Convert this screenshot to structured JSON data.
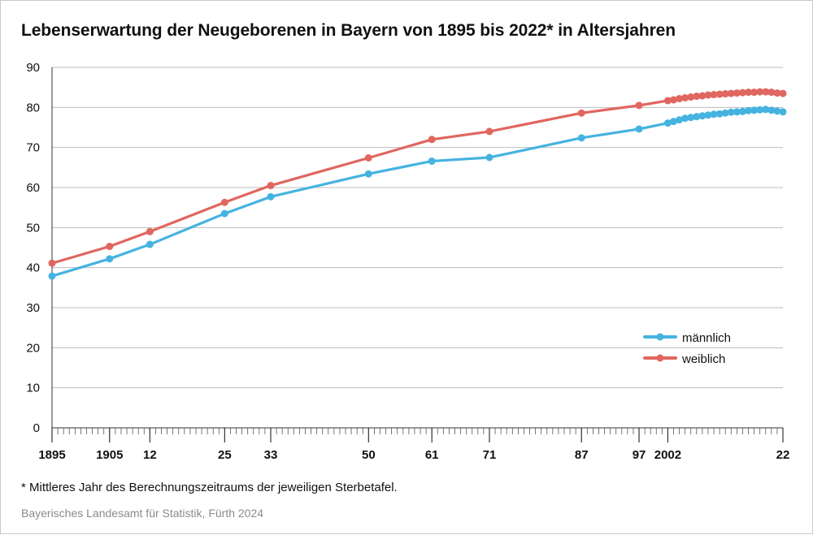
{
  "title": "Lebenserwartung der Neugeborenen in Bayern von 1895 bis 2022* in Altersjahren",
  "footnote": "* Mittleres Jahr des Berechnungszeitraums der jeweiligen Sterbetafel.",
  "source": "Bayerisches Landesamt für Statistik, Fürth 2024",
  "chart_data": {
    "type": "line",
    "title": "Lebenserwartung der Neugeborenen in Bayern von 1895 bis 2022* in Altersjahren",
    "xlabel": "",
    "ylabel": "",
    "xlim": [
      1895,
      2022
    ],
    "ylim": [
      0,
      90
    ],
    "y_ticks": [
      0,
      10,
      20,
      30,
      40,
      50,
      60,
      70,
      80,
      90
    ],
    "x_tick_labels": [
      {
        "year": 1895,
        "label": "1895"
      },
      {
        "year": 1905,
        "label": "1905"
      },
      {
        "year": 1912,
        "label": "12"
      },
      {
        "year": 1925,
        "label": "25"
      },
      {
        "year": 1933,
        "label": "33"
      },
      {
        "year": 1950,
        "label": "50"
      },
      {
        "year": 1961,
        "label": "61"
      },
      {
        "year": 1971,
        "label": "71"
      },
      {
        "year": 1987,
        "label": "87"
      },
      {
        "year": 1997,
        "label": "97"
      },
      {
        "year": 2002,
        "label": "2002"
      },
      {
        "year": 2022,
        "label": "22"
      }
    ],
    "grid": "horizontal",
    "legend_position": "right",
    "series": [
      {
        "name": "männlich",
        "color": "#45b3e0",
        "x": [
          1895,
          1905,
          1912,
          1925,
          1933,
          1950,
          1961,
          1971,
          1987,
          1997,
          2002,
          2003,
          2004,
          2005,
          2006,
          2007,
          2008,
          2009,
          2010,
          2011,
          2012,
          2013,
          2014,
          2015,
          2016,
          2017,
          2018,
          2019,
          2020,
          2021,
          2022
        ],
        "values": [
          37.9,
          42.2,
          45.8,
          53.5,
          57.7,
          63.4,
          66.6,
          67.5,
          72.4,
          74.6,
          76.1,
          76.5,
          76.9,
          77.3,
          77.5,
          77.7,
          77.9,
          78.1,
          78.3,
          78.4,
          78.6,
          78.8,
          78.9,
          79.0,
          79.2,
          79.3,
          79.4,
          79.5,
          79.3,
          79.1,
          78.9
        ]
      },
      {
        "name": "weiblich",
        "color": "#e06660",
        "x": [
          1895,
          1905,
          1912,
          1925,
          1933,
          1950,
          1961,
          1971,
          1987,
          1997,
          2002,
          2003,
          2004,
          2005,
          2006,
          2007,
          2008,
          2009,
          2010,
          2011,
          2012,
          2013,
          2014,
          2015,
          2016,
          2017,
          2018,
          2019,
          2020,
          2021,
          2022
        ],
        "values": [
          41.1,
          45.3,
          49.0,
          56.3,
          60.5,
          67.4,
          72.0,
          74.0,
          78.6,
          80.5,
          81.7,
          81.9,
          82.2,
          82.4,
          82.6,
          82.8,
          82.9,
          83.1,
          83.2,
          83.3,
          83.4,
          83.5,
          83.6,
          83.7,
          83.8,
          83.8,
          83.9,
          83.9,
          83.8,
          83.6,
          83.5
        ]
      }
    ]
  }
}
